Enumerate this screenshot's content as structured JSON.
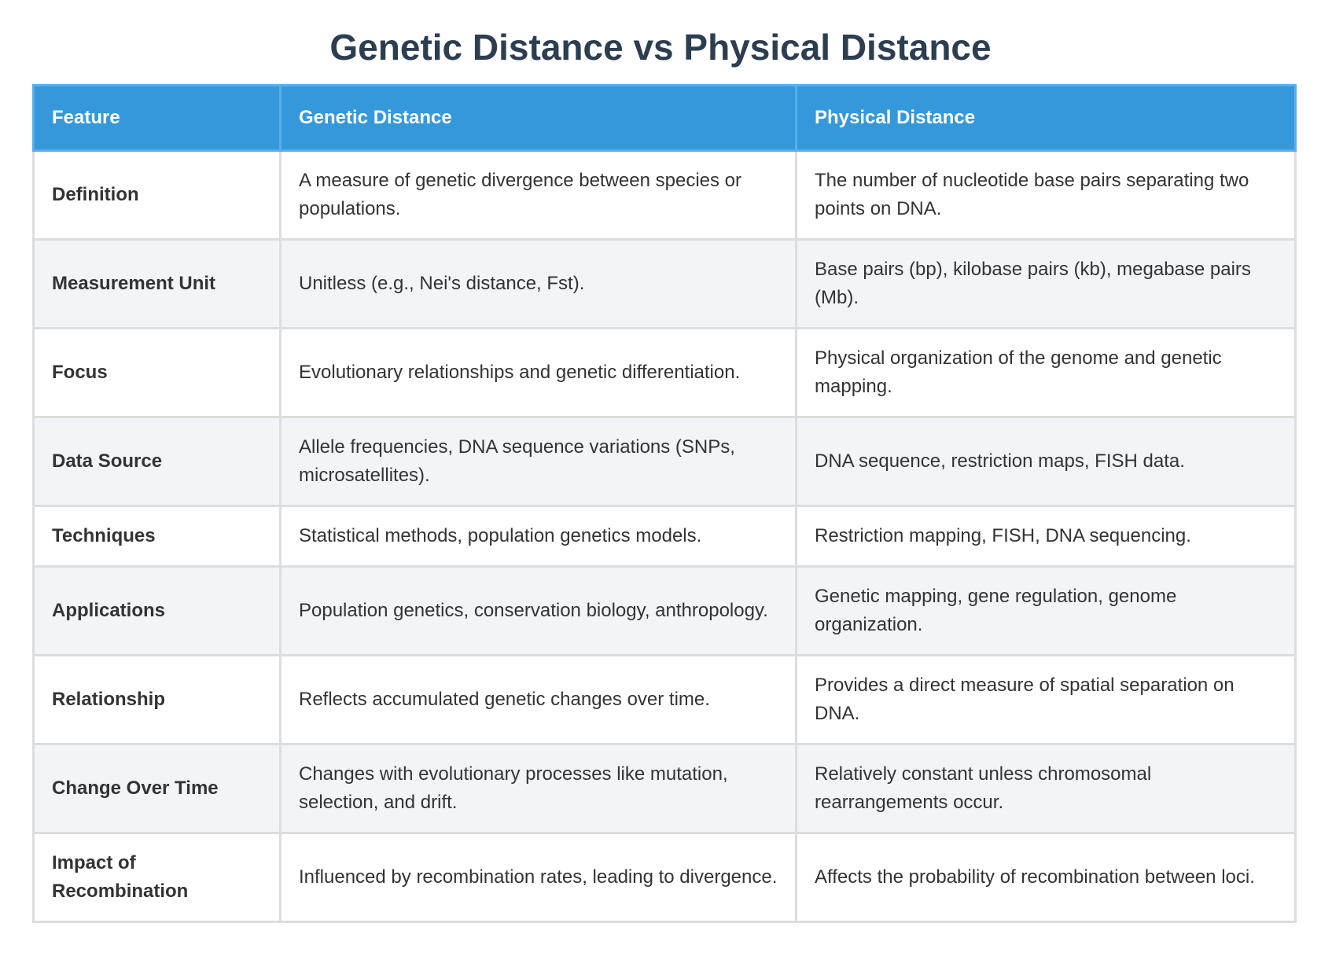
{
  "title": "Genetic Distance vs Physical Distance",
  "columns": [
    "Feature",
    "Genetic Distance",
    "Physical Distance"
  ],
  "rows": [
    {
      "feature": "Definition",
      "genetic": "A measure of genetic divergence between species or populations.",
      "physical": "The number of nucleotide base pairs separating two points on DNA."
    },
    {
      "feature": "Measurement Unit",
      "genetic": "Unitless (e.g., Nei's distance, Fst).",
      "physical": "Base pairs (bp), kilobase pairs (kb), megabase pairs (Mb)."
    },
    {
      "feature": "Focus",
      "genetic": "Evolutionary relationships and genetic differentiation.",
      "physical": "Physical organization of the genome and genetic mapping."
    },
    {
      "feature": "Data Source",
      "genetic": "Allele frequencies, DNA sequence variations (SNPs, microsatellites).",
      "physical": "DNA sequence, restriction maps, FISH data."
    },
    {
      "feature": "Techniques",
      "genetic": "Statistical methods, population genetics models.",
      "physical": "Restriction mapping, FISH, DNA sequencing."
    },
    {
      "feature": "Applications",
      "genetic": "Population genetics, conservation biology, anthropology.",
      "physical": "Genetic mapping, gene regulation, genome organization."
    },
    {
      "feature": "Relationship",
      "genetic": "Reflects accumulated genetic changes over time.",
      "physical": "Provides a direct measure of spatial separation on DNA."
    },
    {
      "feature": "Change Over Time",
      "genetic": "Changes with evolutionary processes like mutation, selection, and drift.",
      "physical": "Relatively constant unless chromosomal rearrangements occur."
    },
    {
      "feature": "Impact of Recombination",
      "genetic": "Influenced by recombination rates, leading to divergence.",
      "physical": "Affects the probability of recombination between loci."
    }
  ]
}
